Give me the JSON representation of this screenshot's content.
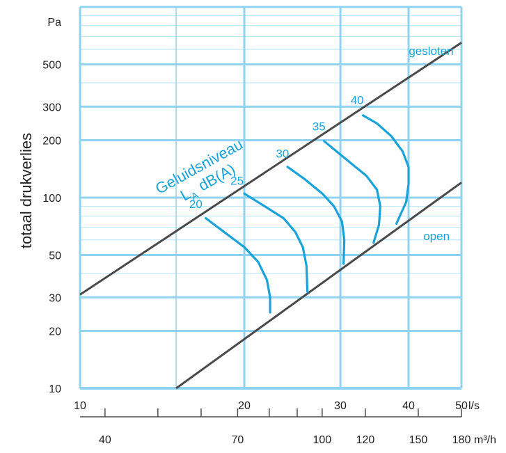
{
  "chart_data": {
    "type": "line",
    "title": "",
    "ylabel": "totaal drukverlies",
    "y_unit": "Pa",
    "x_unit": "l/s",
    "x2_unit": "m³/h",
    "x_scale": "log",
    "y_scale": "log",
    "xlim": [
      10,
      50
    ],
    "ylim": [
      10,
      1000
    ],
    "grid": true,
    "x_ticks": [
      10,
      20,
      30,
      40,
      50
    ],
    "x_tick_labels": [
      "10",
      "20",
      "30",
      "40",
      "50"
    ],
    "x2_ticks": [
      40,
      70,
      100,
      120,
      150,
      180
    ],
    "x2_tick_labels": [
      "40",
      "70",
      "100",
      "120",
      "150",
      "180"
    ],
    "y_ticks": [
      10,
      20,
      30,
      50,
      100,
      200,
      300,
      500
    ],
    "y_tick_labels": [
      "10",
      "20",
      "30",
      "50",
      "100",
      "200",
      "300",
      "500"
    ],
    "series": [
      {
        "name": "gesloten",
        "x": [
          10,
          50
        ],
        "y": [
          31,
          650
        ]
      },
      {
        "name": "open",
        "x": [
          15,
          50
        ],
        "y": [
          10,
          120
        ]
      }
    ],
    "sound_curves": [
      {
        "name": "20",
        "x": [
          17,
          18.5,
          20,
          21.2,
          22,
          22.3,
          22.3
        ],
        "y": [
          78,
          65,
          55,
          46,
          37,
          30,
          25
        ]
      },
      {
        "name": "25",
        "x": [
          20,
          21.8,
          23.6,
          24.8,
          25.6,
          26,
          26.1
        ],
        "y": [
          105,
          90,
          78,
          66,
          55,
          44,
          32
        ]
      },
      {
        "name": "30",
        "x": [
          24,
          25.8,
          27.8,
          29.2,
          30.2,
          30.5,
          30.4
        ],
        "y": [
          145,
          125,
          105,
          90,
          75,
          60,
          45
        ]
      },
      {
        "name": "35",
        "x": [
          28,
          29.5,
          31.5,
          33.5,
          35,
          35.5,
          35.3,
          34.5
        ],
        "y": [
          198,
          175,
          150,
          130,
          110,
          90,
          72,
          58
        ]
      },
      {
        "name": "40",
        "x": [
          33,
          35,
          37.2,
          39,
          40,
          40,
          39.6,
          38
        ],
        "y": [
          270,
          245,
          210,
          175,
          145,
          118,
          95,
          73
        ]
      }
    ],
    "annotations": {
      "gesloten": "gesloten",
      "open": "open",
      "geluidsniveau": "Geluidsniveau",
      "la_symbol": "L",
      "la_subscript": "A",
      "dba": "dB(A)",
      "level_labels": [
        "20",
        "25",
        "30",
        "35",
        "40"
      ]
    }
  },
  "colors": {
    "grid": "#8fd3f0",
    "grid_minor": "#c2e9f8",
    "line": "#4a4a4a",
    "accent": "#1aa3d9",
    "text": "#222222"
  }
}
